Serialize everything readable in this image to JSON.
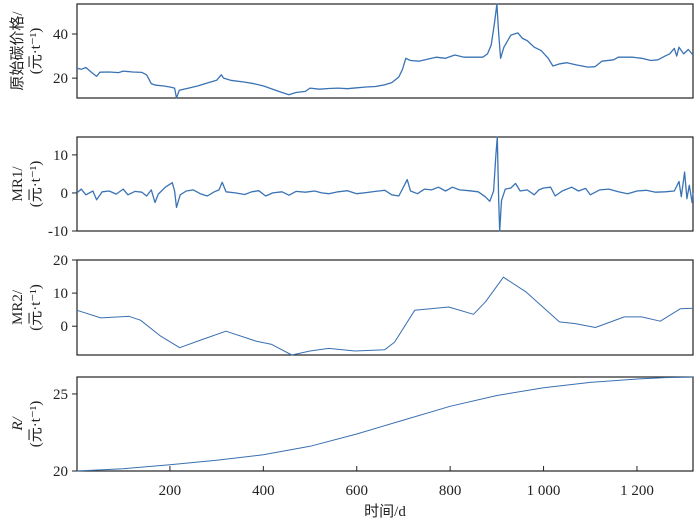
{
  "chart_data": [
    {
      "type": "line",
      "ylabel": "原始碳价格/",
      "yunit": "(元·t⁻¹)",
      "ylabel_italic": false,
      "ylim": [
        11,
        53.6
      ],
      "yticks": [
        20,
        40
      ],
      "color": "#3a73b5",
      "points": [
        [
          1,
          24.5
        ],
        [
          10,
          24
        ],
        [
          20,
          24.8
        ],
        [
          30,
          23
        ],
        [
          43,
          20.8
        ],
        [
          50,
          22.7
        ],
        [
          70,
          22.8
        ],
        [
          90,
          22.5
        ],
        [
          100,
          23.2
        ],
        [
          120,
          22.8
        ],
        [
          140,
          22.6
        ],
        [
          150,
          21.5
        ],
        [
          160,
          17.5
        ],
        [
          170,
          16.8
        ],
        [
          185,
          16.5
        ],
        [
          200,
          16
        ],
        [
          210,
          15.5
        ],
        [
          214,
          11
        ],
        [
          220,
          14.5
        ],
        [
          240,
          15.5
        ],
        [
          260,
          16.5
        ],
        [
          280,
          17.8
        ],
        [
          300,
          19
        ],
        [
          310,
          21.5
        ],
        [
          315,
          20
        ],
        [
          330,
          19
        ],
        [
          360,
          18.2
        ],
        [
          380,
          17.5
        ],
        [
          400,
          16.5
        ],
        [
          420,
          15
        ],
        [
          440,
          13.5
        ],
        [
          455,
          12.5
        ],
        [
          470,
          13.5
        ],
        [
          490,
          14
        ],
        [
          500,
          15.5
        ],
        [
          520,
          15
        ],
        [
          540,
          15.3
        ],
        [
          560,
          15.5
        ],
        [
          580,
          15.2
        ],
        [
          600,
          15.6
        ],
        [
          620,
          16
        ],
        [
          640,
          16.2
        ],
        [
          660,
          17
        ],
        [
          675,
          18
        ],
        [
          690,
          20.5
        ],
        [
          698,
          24
        ],
        [
          705,
          29
        ],
        [
          715,
          28
        ],
        [
          733,
          27.7
        ],
        [
          750,
          28.5
        ],
        [
          770,
          29.5
        ],
        [
          790,
          29
        ],
        [
          810,
          30.5
        ],
        [
          830,
          29.5
        ],
        [
          850,
          29.5
        ],
        [
          870,
          29.5
        ],
        [
          880,
          31
        ],
        [
          888,
          35
        ],
        [
          895,
          45
        ],
        [
          900,
          53.6
        ],
        [
          904,
          40
        ],
        [
          908,
          29
        ],
        [
          915,
          34
        ],
        [
          930,
          39.5
        ],
        [
          945,
          40.5
        ],
        [
          955,
          38
        ],
        [
          965,
          37
        ],
        [
          980,
          34
        ],
        [
          995,
          32.5
        ],
        [
          1010,
          29
        ],
        [
          1020,
          25.5
        ],
        [
          1035,
          26.5
        ],
        [
          1050,
          27
        ],
        [
          1070,
          26
        ],
        [
          1095,
          25
        ],
        [
          1110,
          25.2
        ],
        [
          1125,
          27.7
        ],
        [
          1150,
          28.3
        ],
        [
          1160,
          29.5
        ],
        [
          1190,
          29.5
        ],
        [
          1210,
          29
        ],
        [
          1230,
          28
        ],
        [
          1245,
          28.3
        ],
        [
          1260,
          30
        ],
        [
          1270,
          31
        ],
        [
          1280,
          33.5
        ],
        [
          1285,
          30
        ],
        [
          1290,
          34
        ],
        [
          1300,
          31
        ],
        [
          1310,
          33
        ],
        [
          1320,
          30.5
        ]
      ]
    },
    {
      "type": "line",
      "ylabel": "MR1/",
      "yunit": "(元·t⁻¹)",
      "ylabel_italic": false,
      "ylim": [
        -10,
        14.7
      ],
      "yticks": [
        -10,
        0,
        10
      ],
      "color": "#3a73b5",
      "points": [
        [
          1,
          0
        ],
        [
          10,
          1
        ],
        [
          20,
          -0.5
        ],
        [
          35,
          0.5
        ],
        [
          43,
          -1.8
        ],
        [
          55,
          0.3
        ],
        [
          70,
          0.5
        ],
        [
          85,
          -0.3
        ],
        [
          100,
          1
        ],
        [
          110,
          -0.5
        ],
        [
          125,
          0.4
        ],
        [
          140,
          0.2
        ],
        [
          150,
          -0.8
        ],
        [
          160,
          0.8
        ],
        [
          168,
          -2.5
        ],
        [
          175,
          -0.3
        ],
        [
          190,
          1.5
        ],
        [
          205,
          2.7
        ],
        [
          210,
          0.5
        ],
        [
          214,
          -3.8
        ],
        [
          222,
          -0.5
        ],
        [
          235,
          0.5
        ],
        [
          250,
          0.8
        ],
        [
          265,
          -0.2
        ],
        [
          280,
          -0.8
        ],
        [
          295,
          0.3
        ],
        [
          305,
          0.8
        ],
        [
          312,
          2.8
        ],
        [
          320,
          0.3
        ],
        [
          340,
          0
        ],
        [
          360,
          -0.4
        ],
        [
          375,
          0.3
        ],
        [
          390,
          0.6
        ],
        [
          405,
          -0.8
        ],
        [
          420,
          0
        ],
        [
          440,
          0.3
        ],
        [
          455,
          -0.6
        ],
        [
          470,
          0.4
        ],
        [
          490,
          0.2
        ],
        [
          510,
          0.5
        ],
        [
          525,
          0
        ],
        [
          540,
          -0.2
        ],
        [
          560,
          0.3
        ],
        [
          580,
          0.6
        ],
        [
          600,
          -0.2
        ],
        [
          620,
          0.1
        ],
        [
          640,
          0.4
        ],
        [
          660,
          0.7
        ],
        [
          675,
          -0.5
        ],
        [
          690,
          -0.8
        ],
        [
          700,
          1.5
        ],
        [
          708,
          3.5
        ],
        [
          715,
          0.5
        ],
        [
          730,
          -0.2
        ],
        [
          745,
          1
        ],
        [
          760,
          0.8
        ],
        [
          775,
          1.5
        ],
        [
          790,
          0.5
        ],
        [
          805,
          1.5
        ],
        [
          820,
          0.8
        ],
        [
          840,
          0.6
        ],
        [
          860,
          0.3
        ],
        [
          875,
          -1
        ],
        [
          885,
          -2.2
        ],
        [
          893,
          0.5
        ],
        [
          898,
          10
        ],
        [
          901,
          14.7
        ],
        [
          904,
          -2
        ],
        [
          906,
          -10
        ],
        [
          910,
          -2
        ],
        [
          918,
          1
        ],
        [
          930,
          1.3
        ],
        [
          940,
          2.5
        ],
        [
          950,
          0.5
        ],
        [
          965,
          0.8
        ],
        [
          980,
          -0.5
        ],
        [
          990,
          0.8
        ],
        [
          1000,
          1.3
        ],
        [
          1015,
          1.5
        ],
        [
          1025,
          -0.8
        ],
        [
          1040,
          0.5
        ],
        [
          1060,
          1.5
        ],
        [
          1075,
          0.5
        ],
        [
          1090,
          1.2
        ],
        [
          1100,
          -0.5
        ],
        [
          1120,
          0.8
        ],
        [
          1140,
          1
        ],
        [
          1160,
          0.3
        ],
        [
          1180,
          -0.2
        ],
        [
          1200,
          0.5
        ],
        [
          1220,
          0.7
        ],
        [
          1240,
          0.2
        ],
        [
          1260,
          0.3
        ],
        [
          1280,
          0.5
        ],
        [
          1290,
          3
        ],
        [
          1295,
          -1
        ],
        [
          1302,
          5.5
        ],
        [
          1307,
          -1.5
        ],
        [
          1312,
          2
        ],
        [
          1318,
          -2.5
        ],
        [
          1320,
          0
        ]
      ]
    },
    {
      "type": "line",
      "ylabel": "MR2/",
      "yunit": "(元·t⁻¹)",
      "ylabel_italic": false,
      "ylim": [
        -8.7,
        20
      ],
      "yticks": [
        0,
        10,
        20
      ],
      "color": "#3a6fb0",
      "points": [
        [
          1,
          4.8
        ],
        [
          52,
          2.5
        ],
        [
          112,
          3.0
        ],
        [
          137,
          1.8
        ],
        [
          180,
          -3
        ],
        [
          221,
          -6.5
        ],
        [
          270,
          -4
        ],
        [
          320,
          -1.5
        ],
        [
          384,
          -4.5
        ],
        [
          418,
          -5.5
        ],
        [
          461,
          -8.7
        ],
        [
          500,
          -7.5
        ],
        [
          540,
          -6.7
        ],
        [
          596,
          -7.5
        ],
        [
          660,
          -7.1
        ],
        [
          681,
          -4.8
        ],
        [
          724,
          4.8
        ],
        [
          797,
          5.8
        ],
        [
          850,
          3.6
        ],
        [
          876,
          7.4
        ],
        [
          914,
          14.8
        ],
        [
          962,
          10.4
        ],
        [
          1034,
          1.3
        ],
        [
          1068,
          0.8
        ],
        [
          1111,
          -0.4
        ],
        [
          1173,
          2.8
        ],
        [
          1210,
          2.8
        ],
        [
          1250,
          1.5
        ],
        [
          1293,
          5.3
        ],
        [
          1320,
          5.4
        ]
      ]
    },
    {
      "type": "line",
      "ylabel": "R/",
      "yunit": "(元·t⁻¹)",
      "ylabel_italic": true,
      "ylim": [
        20,
        26.1
      ],
      "yticks": [
        20,
        25
      ],
      "color": "#3a6fb0",
      "points": [
        [
          1,
          20
        ],
        [
          100,
          20.15
        ],
        [
          200,
          20.4
        ],
        [
          300,
          20.7
        ],
        [
          400,
          21.05
        ],
        [
          500,
          21.6
        ],
        [
          600,
          22.4
        ],
        [
          700,
          23.3
        ],
        [
          800,
          24.2
        ],
        [
          900,
          24.9
        ],
        [
          1000,
          25.4
        ],
        [
          1100,
          25.75
        ],
        [
          1200,
          25.97
        ],
        [
          1260,
          26.06
        ],
        [
          1320,
          26.1
        ]
      ]
    }
  ],
  "x_axis": {
    "label": "时间/d",
    "xlim": [
      1,
      1320
    ],
    "ticks": [
      200,
      400,
      600,
      800,
      1000,
      1200
    ],
    "tick_labels": [
      "200",
      "400",
      "600",
      "800",
      "1 000",
      "1 200"
    ]
  }
}
